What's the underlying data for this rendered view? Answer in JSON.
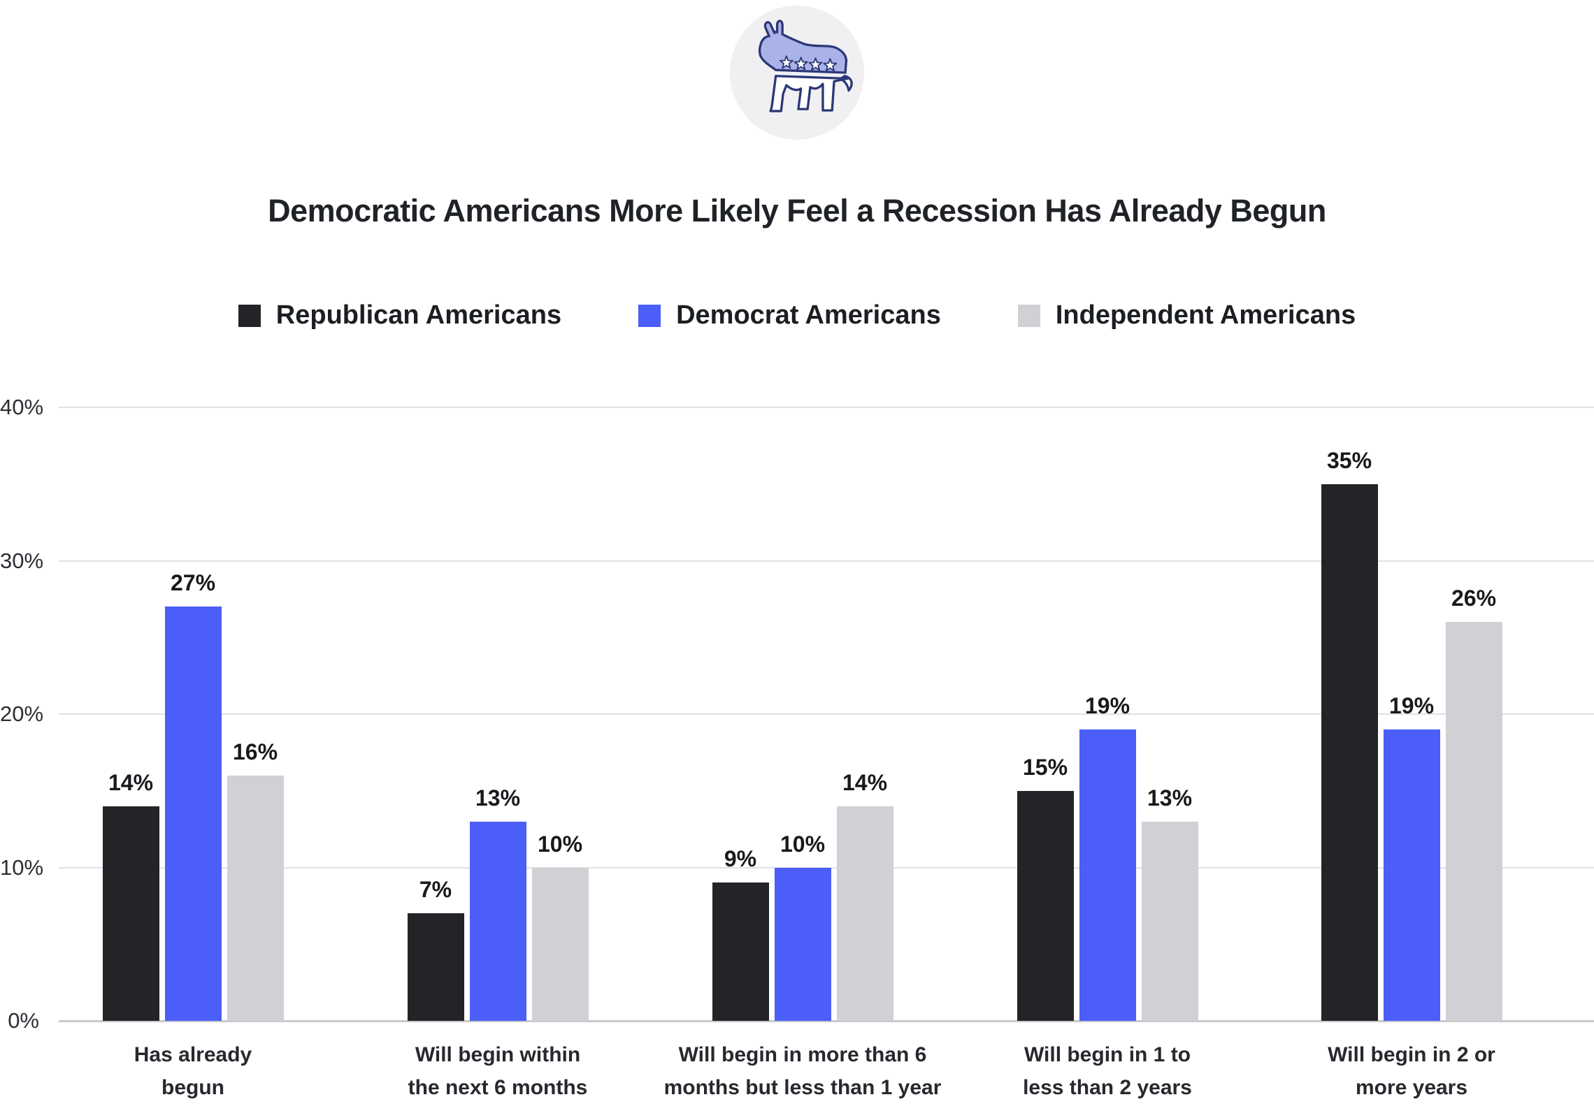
{
  "header": {
    "icon": "democrat-donkey-icon",
    "title": "Democratic Americans More Likely Feel a Recession Has Already Begun"
  },
  "colors": {
    "republican": "#232427",
    "democrat": "#4b5ef7",
    "independent": "#d0d0d5",
    "icon_circle_bg": "#f0f0f3",
    "donkey_fill": "#a9b3e8",
    "donkey_outline": "#2c3776",
    "gridline": "#e1e1e4",
    "axis_line": "#c9c9cd"
  },
  "chart_data": {
    "type": "bar",
    "title": "Democratic Americans More Likely Feel a Recession Has Already Begun",
    "categories": [
      [
        "Has already",
        "begun"
      ],
      [
        "Will begin within",
        "the next 6 months"
      ],
      [
        "Will begin in more than 6",
        "months but less than 1 year"
      ],
      [
        "Will begin in 1 to",
        "less than 2 years"
      ],
      [
        "Will begin in 2 or",
        "more years"
      ]
    ],
    "series": [
      {
        "name": "Republican Americans",
        "color": "#232427",
        "values": [
          14,
          7,
          9,
          15,
          35
        ]
      },
      {
        "name": "Democrat Americans",
        "color": "#4b5ef7",
        "values": [
          27,
          13,
          10,
          19,
          19
        ]
      },
      {
        "name": "Independent Americans",
        "color": "#d0d0d5",
        "values": [
          16,
          10,
          14,
          13,
          26
        ]
      }
    ],
    "value_suffix": "%",
    "y_axis": {
      "ticks": [
        "0%",
        "10%",
        "20%",
        "30%",
        "40%"
      ],
      "tick_values": [
        0,
        10,
        20,
        30,
        40
      ],
      "ylim": [
        0,
        40
      ]
    },
    "grid": true,
    "legend_position": "top"
  }
}
